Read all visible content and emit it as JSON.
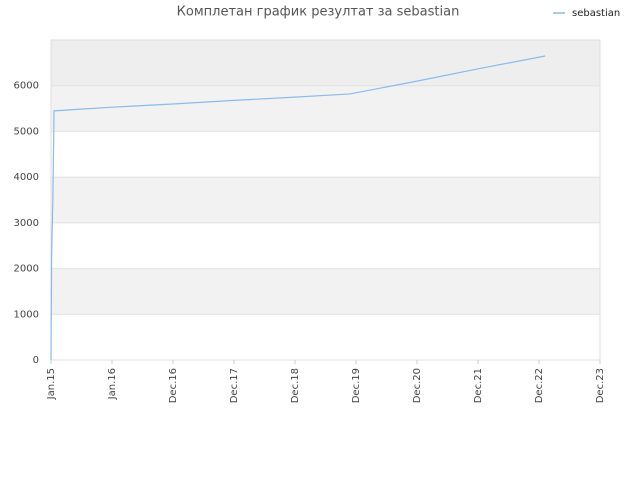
{
  "chart_data": {
    "type": "line",
    "title": "Комплетан график резултат за sebastian",
    "x": [
      0,
      0.01,
      0.03,
      0.05,
      1,
      2,
      3,
      4,
      4.9,
      6,
      7,
      8.1
    ],
    "series": [
      {
        "name": "sebastian",
        "color": "#88bbee",
        "values": [
          0,
          2250,
          3500,
          5450,
          5530,
          5600,
          5680,
          5750,
          5820,
          6100,
          6370,
          6650
        ]
      }
    ],
    "xlim": [
      0,
      9
    ],
    "xticks": [
      {
        "value": 0,
        "label": "Jan.15"
      },
      {
        "value": 1,
        "label": "Jan.16"
      },
      {
        "value": 2,
        "label": "Dec.16"
      },
      {
        "value": 3,
        "label": "Dec.17"
      },
      {
        "value": 4,
        "label": "Dec.18"
      },
      {
        "value": 5,
        "label": "Dec.19"
      },
      {
        "value": 6,
        "label": "Dec.20"
      },
      {
        "value": 7,
        "label": "Dec.21"
      },
      {
        "value": 8,
        "label": "Dec.22"
      },
      {
        "value": 9,
        "label": "Dec.23"
      }
    ],
    "ylim": [
      0,
      7000
    ],
    "yticks": [
      0,
      1000,
      2000,
      3000,
      4000,
      5000,
      6000
    ],
    "grid": true
  }
}
